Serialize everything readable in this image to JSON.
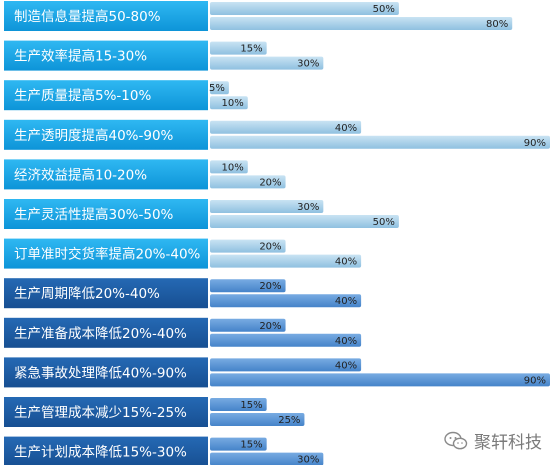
{
  "chart_data": {
    "type": "bar",
    "title": "",
    "xlabel": "",
    "ylabel": "",
    "xlim": [
      0,
      90
    ],
    "value_unit": "%",
    "categories": [
      "制造信息量提高50-80%",
      "生产效率提高15-30%",
      "生产质量提高5%-10%",
      "生产透明度提高40%-90%",
      "经济效益提高10-20%",
      "生产灵活性提高30%-50%",
      "订单准时交货率提高20%-40%",
      "生产周期降低20%-40%",
      "生产准备成本降低20%-40%",
      "紧急事故处理降低40%-90%",
      "生产管理成本减少15%-25%",
      "生产计划成本降低15%-30%"
    ],
    "series": [
      {
        "values": [
          50,
          15,
          5,
          40,
          10,
          30,
          20,
          20,
          20,
          40,
          15,
          15
        ]
      },
      {
        "values": [
          80,
          30,
          10,
          90,
          20,
          50,
          40,
          40,
          40,
          90,
          25,
          30
        ]
      }
    ],
    "group_split": 7,
    "colors": {
      "label_top_group": "#19a9ea",
      "label_bottom_group": "#1b5fa8",
      "bar_top_group": "#a8d0e8",
      "bar_bottom_group": "#5b95d6",
      "label_text": "#ffffff",
      "value_text": "#222222"
    }
  },
  "watermark": {
    "text": "聚轩科技",
    "icon": "wechat-icon"
  }
}
